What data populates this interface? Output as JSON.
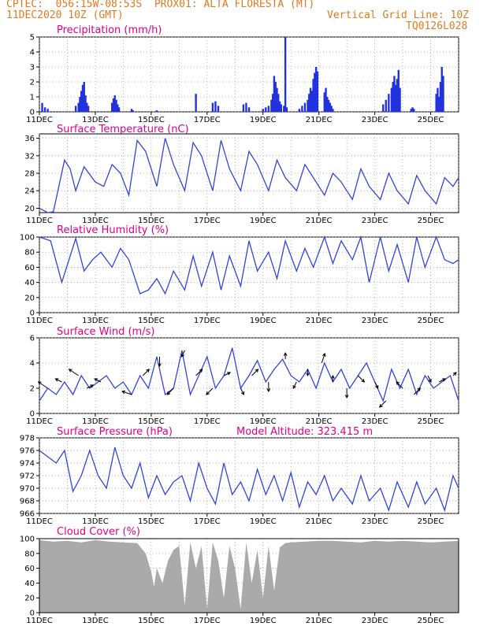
{
  "header": {
    "line1_left": "CPTEC:  056:15W-08:53S  PROX01: ALTA FLORESTA (MT)",
    "line2_left": "11DEC2020 10Z (GMT)",
    "line2_right": "Vertical Grid Line: 10Z",
    "line3_right": "TQ0126L028"
  },
  "colors": {
    "line": "#3344dd",
    "bar": "#2233dd",
    "cloud": "#aaaaaa",
    "title": "#e0008a",
    "header": "#e07a1f"
  },
  "chart_data": [
    {
      "id": "precip",
      "type": "bar",
      "title": "Precipitation (mm/h)",
      "ylim": [
        0,
        5
      ],
      "yticks": [
        0,
        1,
        2,
        3,
        4,
        5
      ],
      "xticks": [
        "11DEC",
        "13DEC",
        "15DEC",
        "17DEC",
        "19DEC",
        "21DEC",
        "23DEC",
        "25DEC"
      ],
      "x_unit": "days since 11DEC 10Z",
      "x": [
        0.1,
        0.2,
        0.3,
        1.3,
        1.4,
        1.45,
        1.5,
        1.55,
        1.6,
        1.65,
        1.7,
        1.75,
        2.6,
        2.65,
        2.7,
        2.75,
        2.8,
        2.85,
        3.3,
        3.35,
        4.2,
        5.6,
        6.2,
        6.3,
        6.4,
        7.3,
        7.4,
        7.5,
        8.0,
        8.1,
        8.2,
        8.3,
        8.35,
        8.4,
        8.45,
        8.5,
        8.55,
        8.6,
        8.65,
        8.75,
        8.8,
        8.85,
        9.3,
        9.4,
        9.5,
        9.6,
        9.65,
        9.7,
        9.75,
        9.8,
        9.85,
        9.9,
        9.95,
        10.2,
        10.25,
        10.3,
        10.35,
        10.4,
        10.45,
        10.5,
        12.3,
        12.4,
        12.5,
        12.6,
        12.65,
        12.7,
        12.75,
        12.8,
        12.85,
        12.9,
        13.3,
        13.35,
        13.4,
        14.2,
        14.25,
        14.3,
        14.35,
        14.4,
        14.45
      ],
      "values": [
        0.6,
        0.3,
        0.2,
        0.4,
        0.6,
        1.0,
        1.4,
        1.8,
        2.0,
        1.1,
        0.6,
        0.4,
        0.6,
        0.9,
        1.1,
        0.8,
        0.5,
        0.3,
        0.2,
        0.1,
        0.1,
        1.2,
        0.6,
        0.7,
        0.4,
        0.5,
        0.6,
        0.3,
        0.2,
        0.3,
        0.4,
        0.8,
        1.2,
        2.4,
        2.0,
        1.6,
        1.2,
        0.7,
        0.5,
        0.4,
        5.0,
        0.3,
        0.2,
        0.4,
        0.6,
        0.8,
        1.2,
        1.6,
        1.4,
        2.2,
        2.6,
        3.0,
        2.7,
        1.3,
        1.6,
        1.0,
        0.8,
        0.6,
        0.4,
        0.2,
        0.5,
        0.8,
        1.2,
        1.6,
        2.0,
        2.4,
        1.8,
        2.2,
        2.8,
        1.6,
        0.2,
        0.3,
        0.2,
        1.2,
        1.6,
        1.0,
        2.0,
        3.0,
        2.4
      ]
    },
    {
      "id": "temp",
      "type": "line",
      "title": "Surface Temperature (nC)",
      "ylim": [
        19,
        37
      ],
      "yticks": [
        20,
        24,
        28,
        32,
        36
      ],
      "xticks": [
        "11DEC",
        "13DEC",
        "15DEC",
        "17DEC",
        "19DEC",
        "21DEC",
        "23DEC",
        "25DEC"
      ],
      "x": [
        0,
        0.3,
        0.5,
        0.9,
        1.1,
        1.3,
        1.6,
        2.0,
        2.3,
        2.6,
        2.9,
        3.2,
        3.5,
        3.8,
        4.2,
        4.5,
        4.8,
        5.2,
        5.5,
        5.8,
        6.2,
        6.5,
        6.8,
        7.2,
        7.5,
        7.8,
        8.2,
        8.5,
        8.8,
        9.2,
        9.5,
        9.8,
        10.2,
        10.5,
        10.8,
        11.2,
        11.5,
        11.8,
        12.2,
        12.5,
        12.8,
        13.2,
        13.5,
        13.8,
        14.2,
        14.5,
        14.8,
        15.0
      ],
      "values": [
        20,
        19,
        19.2,
        31,
        29,
        24,
        29.5,
        26,
        25,
        30,
        28,
        23,
        35.5,
        33,
        25,
        36,
        30,
        24,
        35,
        32,
        24,
        35.5,
        29,
        24,
        33,
        30,
        24,
        31,
        27,
        24,
        30,
        27,
        23,
        28,
        26,
        22,
        29,
        25,
        22,
        28,
        24,
        21,
        27.5,
        24,
        21,
        27,
        25,
        27
      ]
    },
    {
      "id": "rh",
      "type": "line",
      "title": "Relative Humidity (%)",
      "ylim": [
        0,
        100
      ],
      "yticks": [
        0,
        20,
        40,
        60,
        80,
        100
      ],
      "xticks": [
        "11DEC",
        "13DEC",
        "15DEC",
        "17DEC",
        "19DEC",
        "21DEC",
        "23DEC",
        "25DEC"
      ],
      "x": [
        0,
        0.4,
        0.8,
        1.3,
        1.6,
        1.9,
        2.2,
        2.6,
        2.9,
        3.2,
        3.6,
        3.9,
        4.2,
        4.5,
        4.8,
        5.2,
        5.5,
        5.8,
        6.2,
        6.5,
        6.8,
        7.2,
        7.5,
        7.8,
        8.2,
        8.5,
        8.8,
        9.2,
        9.5,
        9.8,
        10.2,
        10.5,
        10.8,
        11.2,
        11.5,
        11.8,
        12.2,
        12.5,
        12.8,
        13.2,
        13.5,
        13.8,
        14.2,
        14.5,
        14.8,
        15.0
      ],
      "values": [
        100,
        95,
        40,
        98,
        55,
        70,
        80,
        60,
        85,
        70,
        25,
        30,
        45,
        25,
        55,
        30,
        75,
        35,
        80,
        30,
        75,
        35,
        95,
        55,
        80,
        45,
        95,
        55,
        85,
        60,
        100,
        65,
        95,
        70,
        100,
        40,
        100,
        55,
        90,
        40,
        100,
        60,
        100,
        70,
        65,
        70
      ]
    },
    {
      "id": "wind",
      "type": "line",
      "title": "Surface Wind (m/s)",
      "ylim": [
        0,
        6
      ],
      "yticks": [
        0,
        2,
        4,
        6
      ],
      "xticks": [
        "11DEC",
        "13DEC",
        "15DEC",
        "17DEC",
        "19DEC",
        "21DEC",
        "23DEC",
        "25DEC"
      ],
      "x": [
        0,
        0.3,
        0.6,
        0.9,
        1.2,
        1.5,
        1.8,
        2.1,
        2.4,
        2.7,
        3.0,
        3.3,
        3.6,
        3.9,
        4.2,
        4.5,
        4.8,
        5.1,
        5.4,
        5.7,
        6.0,
        6.3,
        6.6,
        6.9,
        7.2,
        7.5,
        7.8,
        8.1,
        8.4,
        8.7,
        9.0,
        9.3,
        9.6,
        9.9,
        10.2,
        10.5,
        10.8,
        11.1,
        11.4,
        11.7,
        12.0,
        12.3,
        12.6,
        12.9,
        13.2,
        13.5,
        13.8,
        14.1,
        14.4,
        14.7,
        15.0
      ],
      "values": [
        1,
        2,
        1.5,
        2.5,
        1.5,
        3,
        2,
        2.5,
        3,
        2,
        2.5,
        1.5,
        3,
        2,
        4.5,
        1.5,
        2,
        5,
        1.5,
        3,
        4.5,
        2,
        3,
        5.2,
        2,
        3,
        4.2,
        2.5,
        3.5,
        4.3,
        3,
        2.5,
        3.5,
        2,
        4,
        2.5,
        3.5,
        2,
        3,
        4,
        2.5,
        1,
        3.5,
        2,
        3.5,
        1.5,
        3,
        2,
        2.5,
        3,
        1
      ],
      "arrows_x": [
        0.3,
        0.8,
        1.4,
        1.7,
        2.2,
        3.3,
        3.7,
        4.3,
        4.8,
        5.2,
        5.6,
        6.2,
        6.6,
        7.2,
        7.6,
        8.2,
        8.8,
        9.2,
        9.6,
        10.1,
        10.5,
        11.0,
        11.4,
        12.0,
        12.4,
        13.0,
        13.4,
        13.9,
        14.3,
        14.8
      ],
      "arrows_u": [
        -1.5,
        -1,
        -1.5,
        1,
        -1,
        -1.5,
        1,
        0,
        -1,
        -0.5,
        1,
        -1,
        1,
        0.5,
        1,
        0,
        0,
        -0.5,
        0,
        0.5,
        0,
        0,
        1,
        0.5,
        -1,
        -1,
        1,
        0.5,
        1,
        0.5
      ],
      "arrows_v": [
        1,
        0.5,
        1,
        0.5,
        0.5,
        0.5,
        1,
        -1.5,
        -1,
        -1,
        1,
        -1,
        0.5,
        -1,
        1,
        -1.5,
        1,
        -1,
        -1,
        1.5,
        1,
        -1.5,
        -1,
        -1,
        -1,
        1,
        1,
        -1,
        0.5,
        0.5
      ]
    },
    {
      "id": "pres",
      "type": "line",
      "title": "Surface Pressure (hPa)",
      "subtitle": "Model Altitude: 323.415  m",
      "ylim": [
        966,
        978
      ],
      "yticks": [
        966,
        968,
        970,
        972,
        974,
        976,
        978
      ],
      "xticks": [
        "11DEC",
        "13DEC",
        "15DEC",
        "17DEC",
        "19DEC",
        "21DEC",
        "23DEC",
        "25DEC"
      ],
      "x": [
        0,
        0.3,
        0.6,
        0.9,
        1.2,
        1.5,
        1.8,
        2.1,
        2.4,
        2.7,
        3.0,
        3.3,
        3.6,
        3.9,
        4.2,
        4.5,
        4.8,
        5.1,
        5.4,
        5.7,
        6.0,
        6.3,
        6.6,
        6.9,
        7.2,
        7.5,
        7.8,
        8.1,
        8.4,
        8.7,
        9.0,
        9.3,
        9.6,
        9.9,
        10.2,
        10.5,
        10.8,
        11.2,
        11.5,
        11.8,
        12.2,
        12.5,
        12.8,
        13.2,
        13.5,
        13.8,
        14.2,
        14.5,
        14.8,
        15.0
      ],
      "values": [
        976,
        975,
        974,
        976,
        969.5,
        972,
        976,
        972,
        970,
        976.5,
        972,
        970,
        974,
        968.5,
        972,
        969,
        971,
        972,
        968,
        974,
        970,
        967.5,
        974,
        969,
        971,
        968,
        973,
        969,
        972,
        968,
        972.5,
        967,
        971,
        969,
        972,
        968,
        970,
        967.5,
        972,
        968,
        970,
        966.5,
        971,
        967,
        971,
        967.5,
        970,
        966.5,
        972,
        970
      ]
    },
    {
      "id": "cloud",
      "type": "area",
      "title": "Cloud Cover (%)",
      "ylim": [
        0,
        100
      ],
      "yticks": [
        0,
        20,
        40,
        60,
        80,
        100
      ],
      "xticks": [
        "11DEC",
        "13DEC",
        "15DEC",
        "17DEC",
        "19DEC",
        "21DEC",
        "23DEC",
        "25DEC"
      ],
      "x": [
        0,
        0.5,
        1.0,
        1.5,
        2.0,
        2.5,
        3.0,
        3.5,
        3.8,
        4.0,
        4.1,
        4.2,
        4.4,
        4.6,
        4.8,
        5.0,
        5.2,
        5.4,
        5.6,
        5.8,
        6.0,
        6.2,
        6.4,
        6.6,
        6.8,
        7.0,
        7.2,
        7.4,
        7.6,
        7.8,
        8.0,
        8.2,
        8.4,
        8.6,
        8.8,
        9.0,
        9.5,
        10.0,
        10.5,
        11.0,
        11.5,
        12.0,
        12.5,
        13.0,
        13.5,
        14.0,
        14.5,
        15.0
      ],
      "values": [
        98,
        96,
        97,
        95,
        98,
        96,
        95,
        94,
        80,
        55,
        35,
        60,
        40,
        70,
        85,
        90,
        10,
        95,
        60,
        90,
        5,
        95,
        70,
        20,
        90,
        60,
        5,
        95,
        40,
        85,
        20,
        90,
        30,
        88,
        94,
        95,
        96,
        97,
        97,
        96,
        95,
        97,
        96,
        97,
        96,
        95,
        96,
        97
      ]
    }
  ]
}
